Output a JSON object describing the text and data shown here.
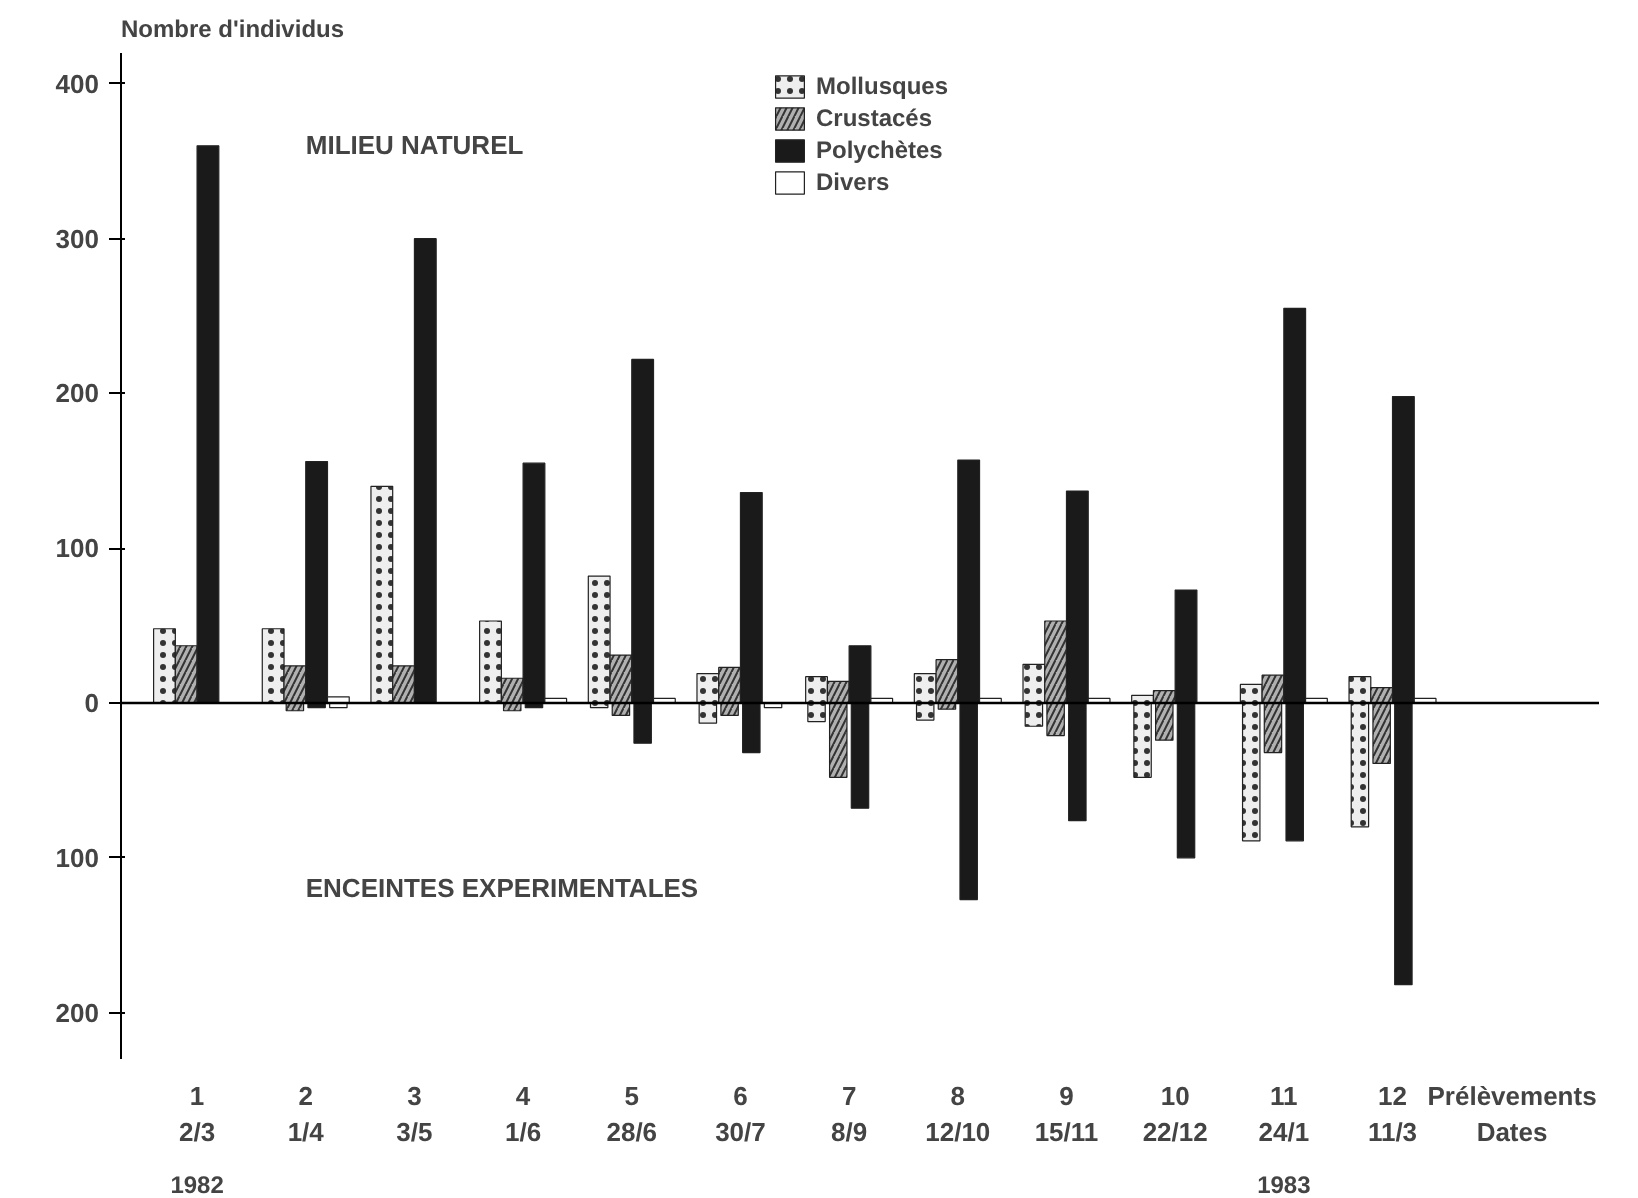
{
  "chart_data": {
    "type": "bar",
    "ylabel": "Nombre d'individus",
    "xlabel": "Prélèvements\nDates",
    "categories": [
      "1\n2/3",
      "2\n1/4",
      "3\n3/5",
      "4\n1/6",
      "5\n28/6",
      "6\n30/7",
      "7\n8/9",
      "8\n12/10",
      "9\n15/11",
      "10\n22/12",
      "11\n24/1",
      "12\n11/3"
    ],
    "ref_lines": [
      {
        "axis": "y",
        "value": 0
      }
    ],
    "series": [
      {
        "name": "Mollusques",
        "color": "#eeeeee",
        "values": [
          48,
          48,
          140,
          53,
          82,
          19,
          17,
          19,
          25,
          5,
          12,
          17
        ]
      },
      {
        "name": "Crustacés",
        "color": "#b0b0b0",
        "values": [
          37,
          24,
          24,
          16,
          31,
          23,
          14,
          28,
          53,
          8,
          18,
          10
        ]
      },
      {
        "name": "Polychètes",
        "color": "#1a1a1a",
        "values": [
          360,
          156,
          300,
          155,
          222,
          136,
          37,
          157,
          137,
          73,
          255,
          198
        ]
      },
      {
        "name": "Divers",
        "color": "#ffffff",
        "values": [
          null,
          4,
          null,
          3,
          3,
          null,
          3,
          3,
          3,
          null,
          3,
          3
        ]
      },
      {
        "color": "#eeeeee",
        "values": [
          null,
          null,
          null,
          null,
          -3,
          -13,
          -12,
          -11,
          -15,
          -48,
          -89,
          -80
        ]
      },
      {
        "color": "#b0b0b0",
        "values": [
          null,
          -5,
          null,
          -5,
          -8,
          -8,
          -48,
          -4,
          -21,
          -24,
          -32,
          -39
        ]
      },
      {
        "color": "#1a1a1a",
        "values": [
          null,
          -3,
          null,
          -3,
          -26,
          -32,
          -68,
          -127,
          -76,
          -100,
          -89,
          -182
        ]
      },
      {
        "color": "#ffffff",
        "values": [
          null,
          -3,
          null,
          null,
          null,
          -3,
          null,
          null,
          null,
          null,
          null,
          null
        ]
      }
    ],
    "ylim": [
      -230,
      420
    ],
    "yticks": [
      400,
      300,
      200,
      100,
      0,
      {
        "value": -100,
        "label": "100"
      },
      {
        "value": -200,
        "label": "200"
      }
    ],
    "legend": "top",
    "annotations": [
      "MILIEU NATUREL",
      "ENCEINTES EXPERIMENTALES",
      "1982",
      "1983"
    ]
  }
}
